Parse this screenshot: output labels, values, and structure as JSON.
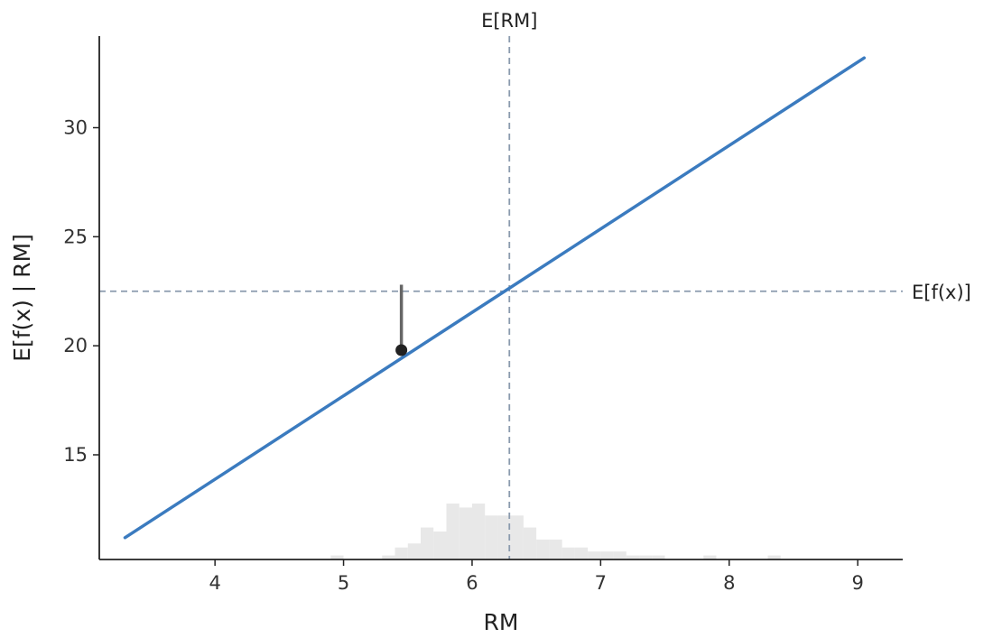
{
  "chart_data": {
    "type": "line",
    "title": "",
    "xlabel": "RM",
    "ylabel": "E[f(x) | RM]",
    "xlim": [
      3.1,
      9.35
    ],
    "ylim": [
      10.2,
      34.2
    ],
    "x_ticks": [
      4,
      5,
      6,
      7,
      8,
      9
    ],
    "y_ticks": [
      15,
      20,
      25,
      30
    ],
    "grid": false,
    "series": [
      {
        "x": [
          3.3,
          9.05
        ],
        "y": [
          11.2,
          33.2
        ],
        "color": "#3b7bbf"
      }
    ],
    "reference_lines": {
      "vertical": {
        "x": 6.29,
        "label": "E[RM]"
      },
      "horizontal": {
        "y": 22.5,
        "label": "E[f(x)]"
      },
      "color": "#8a9aae"
    },
    "highlight_point": {
      "x": 5.45,
      "y": 19.8,
      "from_y": 22.8,
      "point_color": "#222222",
      "stem_color": "#666666"
    },
    "histogram": {
      "color": "#e8e8e8",
      "bins": [
        {
          "x0": 4.9,
          "x1": 5.0,
          "count": 1
        },
        {
          "x0": 5.3,
          "x1": 5.4,
          "count": 1
        },
        {
          "x0": 5.4,
          "x1": 5.5,
          "count": 3
        },
        {
          "x0": 5.5,
          "x1": 5.6,
          "count": 4
        },
        {
          "x0": 5.6,
          "x1": 5.7,
          "count": 8
        },
        {
          "x0": 5.7,
          "x1": 5.8,
          "count": 7
        },
        {
          "x0": 5.8,
          "x1": 5.9,
          "count": 14
        },
        {
          "x0": 5.9,
          "x1": 6.0,
          "count": 13
        },
        {
          "x0": 6.0,
          "x1": 6.1,
          "count": 14
        },
        {
          "x0": 6.1,
          "x1": 6.2,
          "count": 11
        },
        {
          "x0": 6.2,
          "x1": 6.3,
          "count": 11
        },
        {
          "x0": 6.3,
          "x1": 6.4,
          "count": 11
        },
        {
          "x0": 6.4,
          "x1": 6.5,
          "count": 8
        },
        {
          "x0": 6.5,
          "x1": 6.6,
          "count": 5
        },
        {
          "x0": 6.6,
          "x1": 6.7,
          "count": 5
        },
        {
          "x0": 6.7,
          "x1": 6.8,
          "count": 3
        },
        {
          "x0": 6.8,
          "x1": 6.9,
          "count": 3
        },
        {
          "x0": 6.9,
          "x1": 7.0,
          "count": 2
        },
        {
          "x0": 7.0,
          "x1": 7.1,
          "count": 2
        },
        {
          "x0": 7.1,
          "x1": 7.2,
          "count": 2
        },
        {
          "x0": 7.2,
          "x1": 7.3,
          "count": 1
        },
        {
          "x0": 7.3,
          "x1": 7.4,
          "count": 1
        },
        {
          "x0": 7.4,
          "x1": 7.5,
          "count": 1
        },
        {
          "x0": 7.8,
          "x1": 7.9,
          "count": 1
        },
        {
          "x0": 8.3,
          "x1": 8.4,
          "count": 1
        }
      ]
    }
  }
}
